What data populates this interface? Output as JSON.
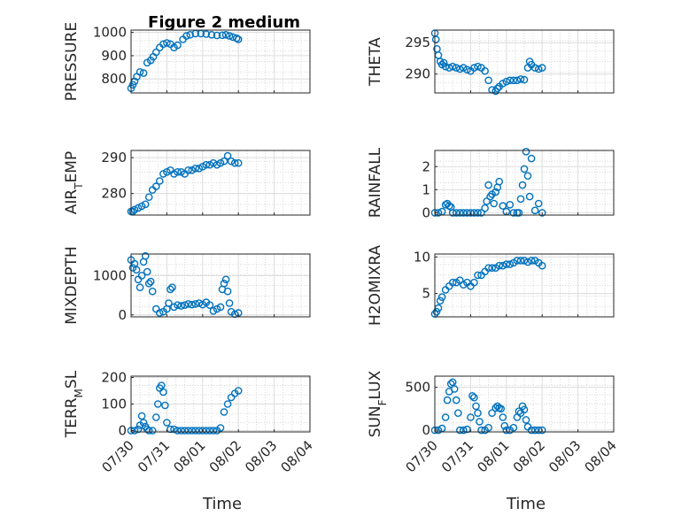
{
  "figure": {
    "title": "Figure 2 medium",
    "xlabel": "Time",
    "x_tick_labels": [
      "07/30",
      "07/31",
      "08/01",
      "08/02",
      "08/03",
      "08/04"
    ],
    "marker_color": "#0072BD"
  },
  "chart_data": [
    {
      "type": "scatter",
      "ylabel_main": "PRESSURE",
      "ylabel_sub": "",
      "x_range": [
        "07/30",
        "08/04"
      ],
      "ylim": [
        740,
        1010
      ],
      "y_ticks": [
        800,
        900,
        1000
      ],
      "y_tick_labels": [
        "800",
        "900",
        "1000"
      ],
      "grid": true,
      "marker": "open-circle",
      "x_days": [
        0.0,
        0.05,
        0.1,
        0.16,
        0.25,
        0.35,
        0.45,
        0.55,
        0.62,
        0.7,
        0.8,
        0.9,
        1.0,
        1.1,
        1.2,
        1.3,
        1.45,
        1.55,
        1.65,
        1.8,
        1.95,
        2.1,
        2.25,
        2.4,
        2.55,
        2.65,
        2.75,
        2.85,
        2.95,
        3.0
      ],
      "y": [
        760,
        775,
        790,
        810,
        830,
        825,
        870,
        880,
        895,
        915,
        935,
        950,
        955,
        950,
        935,
        945,
        970,
        985,
        990,
        995,
        995,
        993,
        990,
        987,
        988,
        990,
        985,
        980,
        975,
        970
      ]
    },
    {
      "type": "scatter",
      "ylabel_main": "THETA",
      "ylabel_sub": "",
      "x_range": [
        "07/30",
        "08/04"
      ],
      "ylim": [
        287,
        297
      ],
      "y_ticks": [
        290,
        295
      ],
      "y_tick_labels": [
        "290",
        "295"
      ],
      "grid": true,
      "marker": "open-circle",
      "x_days": [
        0.0,
        0.03,
        0.06,
        0.1,
        0.15,
        0.2,
        0.25,
        0.3,
        0.4,
        0.5,
        0.6,
        0.7,
        0.8,
        0.9,
        1.0,
        1.1,
        1.2,
        1.3,
        1.4,
        1.5,
        1.6,
        1.7,
        1.75,
        1.8,
        1.9,
        2.0,
        2.1,
        2.2,
        2.3,
        2.4,
        2.5,
        2.6,
        2.65,
        2.7,
        2.8,
        2.9,
        3.0
      ],
      "y": [
        296.5,
        295.5,
        294,
        293,
        292,
        291.5,
        291.8,
        291.2,
        291,
        291.2,
        291,
        290.8,
        291,
        290.7,
        290.5,
        291,
        291.2,
        291,
        290.5,
        289,
        287.5,
        287.3,
        287.7,
        288,
        288.5,
        288.8,
        289,
        289,
        289,
        289.2,
        289.1,
        291,
        292,
        291.5,
        291,
        290.8,
        291
      ],
      "note": "x tick labels are hidden on upper rows"
    },
    {
      "type": "scatter",
      "ylabel_main": "AIR",
      "ylabel_sub": "T",
      "ylabel_tail": "EMP",
      "x_range": [
        "07/30",
        "08/04"
      ],
      "ylim": [
        274,
        292
      ],
      "y_ticks": [
        280,
        290
      ],
      "y_tick_labels": [
        "280",
        "290"
      ],
      "grid": true,
      "marker": "open-circle",
      "x_days": [
        0.0,
        0.05,
        0.1,
        0.2,
        0.3,
        0.4,
        0.5,
        0.6,
        0.7,
        0.8,
        0.9,
        1.0,
        1.1,
        1.2,
        1.3,
        1.4,
        1.5,
        1.6,
        1.7,
        1.8,
        1.9,
        2.0,
        2.1,
        2.2,
        2.3,
        2.4,
        2.5,
        2.6,
        2.7,
        2.8,
        2.9,
        3.0
      ],
      "y": [
        275,
        275,
        275.5,
        276,
        276.5,
        277,
        279,
        281,
        282,
        283.5,
        285.5,
        286,
        286.5,
        285.5,
        286,
        286,
        285.5,
        286.5,
        286.5,
        287,
        287,
        287.5,
        288,
        288,
        288.5,
        288,
        288.5,
        289,
        290.5,
        289,
        288.5,
        288.5
      ]
    },
    {
      "type": "scatter",
      "ylabel_main": "RAINFALL",
      "ylabel_sub": "",
      "x_range": [
        "07/30",
        "08/04"
      ],
      "ylim": [
        -0.1,
        2.7
      ],
      "y_ticks": [
        0,
        1,
        2
      ],
      "y_tick_labels": [
        "0",
        "1",
        "2"
      ],
      "grid": true,
      "marker": "open-circle",
      "x_days": [
        0.0,
        0.1,
        0.2,
        0.3,
        0.35,
        0.4,
        0.45,
        0.5,
        0.6,
        0.7,
        0.8,
        0.9,
        1.0,
        1.1,
        1.2,
        1.3,
        1.4,
        1.45,
        1.5,
        1.55,
        1.6,
        1.65,
        1.7,
        1.75,
        1.8,
        1.9,
        2.0,
        2.1,
        2.2,
        2.3,
        2.35,
        2.4,
        2.45,
        2.5,
        2.55,
        2.6,
        2.65,
        2.7,
        2.8,
        2.9,
        3.0
      ],
      "y": [
        0,
        0,
        0.05,
        0.35,
        0.4,
        0.3,
        0.25,
        0,
        0,
        0,
        0,
        0,
        0,
        0,
        0,
        0,
        0.2,
        0.5,
        1.2,
        0.7,
        0.8,
        0.4,
        0.9,
        1.1,
        1.35,
        0.3,
        0.05,
        0.35,
        0,
        0,
        0,
        0.6,
        1.2,
        1.9,
        2.65,
        1.6,
        0.7,
        2.35,
        0.1,
        0.4,
        0
      ]
    },
    {
      "type": "scatter",
      "ylabel_main": "MIXDEPTH",
      "ylabel_sub": "",
      "x_range": [
        "07/30",
        "08/04"
      ],
      "ylim": [
        -50,
        1550
      ],
      "y_ticks": [
        0,
        1000
      ],
      "y_tick_labels": [
        "0",
        "1000"
      ],
      "grid": true,
      "marker": "open-circle",
      "x_days": [
        0.0,
        0.05,
        0.1,
        0.15,
        0.2,
        0.25,
        0.3,
        0.35,
        0.4,
        0.45,
        0.5,
        0.55,
        0.6,
        0.7,
        0.8,
        0.9,
        1.0,
        1.05,
        1.1,
        1.15,
        1.2,
        1.3,
        1.4,
        1.5,
        1.6,
        1.7,
        1.8,
        1.9,
        2.0,
        2.1,
        2.2,
        2.3,
        2.4,
        2.5,
        2.55,
        2.6,
        2.65,
        2.7,
        2.75,
        2.8,
        2.9,
        3.0
      ],
      "y": [
        1400,
        1200,
        1300,
        1150,
        900,
        700,
        1000,
        1350,
        1500,
        1100,
        800,
        850,
        600,
        150,
        50,
        80,
        150,
        300,
        650,
        700,
        200,
        250,
        230,
        250,
        280,
        260,
        280,
        300,
        260,
        320,
        250,
        100,
        150,
        200,
        650,
        800,
        900,
        600,
        300,
        80,
        20,
        50
      ]
    },
    {
      "type": "scatter",
      "ylabel_main": "H2OMIXRA",
      "ylabel_sub": "",
      "x_range": [
        "07/30",
        "08/04"
      ],
      "ylim": [
        1.8,
        10.4
      ],
      "y_ticks": [
        5,
        10
      ],
      "y_tick_labels": [
        "5",
        "10"
      ],
      "grid": true,
      "marker": "open-circle",
      "x_days": [
        0.0,
        0.05,
        0.1,
        0.15,
        0.2,
        0.3,
        0.4,
        0.5,
        0.6,
        0.7,
        0.8,
        0.9,
        1.0,
        1.1,
        1.2,
        1.3,
        1.4,
        1.5,
        1.6,
        1.7,
        1.8,
        1.9,
        2.0,
        2.1,
        2.2,
        2.3,
        2.4,
        2.5,
        2.6,
        2.7,
        2.8,
        2.9,
        3.0
      ],
      "y": [
        2.2,
        2.5,
        3,
        4,
        4.5,
        5.5,
        6,
        6.5,
        6.5,
        6.8,
        6.2,
        6.5,
        6,
        6.5,
        7.5,
        7.5,
        8,
        8.5,
        8.5,
        8.5,
        8.8,
        8.8,
        9,
        9,
        9.2,
        9.5,
        9.5,
        9.5,
        9.3,
        9.5,
        9.5,
        9.2,
        8.8
      ]
    },
    {
      "type": "scatter",
      "ylabel_main": "TERR",
      "ylabel_sub": "M",
      "ylabel_tail": "SL",
      "x_range": [
        "07/30",
        "08/04"
      ],
      "ylim": [
        -5,
        205
      ],
      "y_ticks": [
        0,
        100,
        200
      ],
      "y_tick_labels": [
        "0",
        "100",
        "200"
      ],
      "grid": true,
      "marker": "open-circle",
      "x_days": [
        0.0,
        0.1,
        0.2,
        0.25,
        0.3,
        0.35,
        0.4,
        0.45,
        0.5,
        0.6,
        0.7,
        0.75,
        0.8,
        0.85,
        0.9,
        0.95,
        1.0,
        1.1,
        1.2,
        1.3,
        1.4,
        1.5,
        1.6,
        1.7,
        1.8,
        1.9,
        2.0,
        2.1,
        2.2,
        2.3,
        2.4,
        2.5,
        2.6,
        2.7,
        2.8,
        2.9,
        3.0
      ],
      "y": [
        0,
        0,
        5,
        20,
        55,
        30,
        15,
        5,
        0,
        0,
        50,
        100,
        160,
        170,
        145,
        95,
        30,
        5,
        5,
        0,
        0,
        0,
        0,
        0,
        0,
        0,
        0,
        0,
        0,
        0,
        0,
        10,
        70,
        100,
        125,
        140,
        150
      ]
    },
    {
      "type": "scatter",
      "ylabel_main": "SUN",
      "ylabel_sub": "F",
      "ylabel_tail": "LUX",
      "x_range": [
        "07/30",
        "08/04"
      ],
      "ylim": [
        -20,
        630
      ],
      "y_ticks": [
        0,
        500
      ],
      "y_tick_labels": [
        "0",
        "500"
      ],
      "grid": true,
      "marker": "open-circle",
      "x_days": [
        0.0,
        0.1,
        0.2,
        0.3,
        0.35,
        0.4,
        0.45,
        0.5,
        0.55,
        0.6,
        0.65,
        0.7,
        0.8,
        0.9,
        1.0,
        1.05,
        1.1,
        1.15,
        1.2,
        1.25,
        1.3,
        1.4,
        1.5,
        1.6,
        1.7,
        1.75,
        1.8,
        1.85,
        1.9,
        1.95,
        2.0,
        2.1,
        2.2,
        2.3,
        2.35,
        2.4,
        2.45,
        2.5,
        2.55,
        2.6,
        2.7,
        2.8,
        2.9,
        3.0
      ],
      "y": [
        0,
        0,
        20,
        150,
        350,
        450,
        540,
        560,
        480,
        350,
        200,
        0,
        0,
        10,
        150,
        400,
        380,
        280,
        200,
        100,
        0,
        0,
        30,
        200,
        260,
        280,
        260,
        250,
        150,
        50,
        0,
        0,
        30,
        150,
        220,
        200,
        280,
        240,
        120,
        40,
        0,
        0,
        0,
        0
      ]
    }
  ]
}
